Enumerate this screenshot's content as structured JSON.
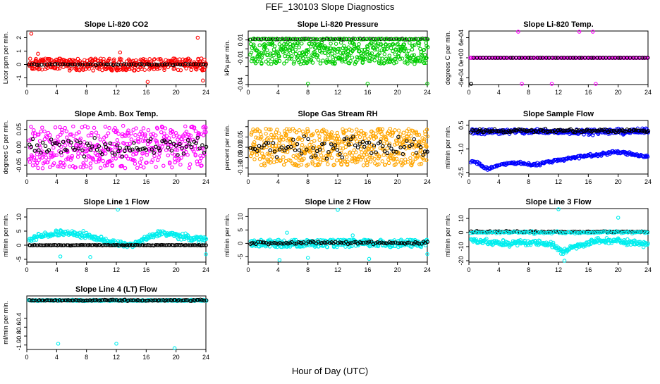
{
  "figure": {
    "title": "FEF_130103 Slope Diagnostics",
    "xlabel": "Hour of Day (UTC)"
  },
  "chart_data": [
    {
      "type": "scatter",
      "title": "Slope Li-820 CO2",
      "ylabel": "Licor ppm per min.",
      "xlim": [
        0,
        24
      ],
      "ylim": [
        -1.5,
        2.5
      ],
      "xticks": [
        0,
        4,
        8,
        12,
        16,
        20,
        24
      ],
      "yticks": [
        -1,
        0,
        1,
        2
      ],
      "ytick_labels": [
        "-1",
        "0",
        "1",
        "2"
      ],
      "color": "#ff0000",
      "series": [
        {
          "kind": "band",
          "color": "#ff0000",
          "center": 0.0,
          "spread": 0.45,
          "n": 380
        },
        {
          "kind": "line",
          "color": "#000000",
          "center": 0.0,
          "spread": 0.06,
          "n": 70
        },
        {
          "kind": "points",
          "color": "#ff0000",
          "points": [
            [
              0.6,
              2.3
            ],
            [
              22.9,
              2.0
            ],
            [
              23.4,
              0.45
            ],
            [
              23.6,
              -1.2
            ],
            [
              16.2,
              -1.3
            ],
            [
              1.5,
              0.8
            ],
            [
              12.5,
              0.9
            ]
          ]
        }
      ]
    },
    {
      "type": "scatter",
      "title": "Slope Li-820 Pressure",
      "ylabel": "kPa per min.",
      "xlim": [
        0,
        24
      ],
      "ylim": [
        -0.04,
        0.02
      ],
      "xticks": [
        0,
        4,
        8,
        12,
        16,
        20,
        24
      ],
      "yticks": [
        -0.04,
        -0.03,
        -0.02,
        -0.01,
        0.0,
        0.01
      ],
      "ytick_labels": [
        "-0.04",
        "",
        "",
        "-0.01",
        "",
        "0.01"
      ],
      "color": "#00cc00",
      "series": [
        {
          "kind": "band",
          "color": "#00cc00",
          "center": -0.005,
          "spread": 0.012,
          "n": 420
        },
        {
          "kind": "line",
          "color": "#000000",
          "center": 0.011,
          "spread": 0.001,
          "n": 80
        },
        {
          "kind": "line",
          "color": "#00cc00",
          "center": 0.011,
          "spread": 0.0008,
          "n": 60
        },
        {
          "kind": "points",
          "color": "#00cc00",
          "points": [
            [
              8,
              -0.039
            ],
            [
              16,
              -0.039
            ],
            [
              24,
              -0.039
            ]
          ]
        }
      ]
    },
    {
      "type": "scatter",
      "title": "Slope Li-820 Temp.",
      "ylabel": "degrees C per min.",
      "xlim": [
        0,
        24
      ],
      "ylim": [
        -0.0008,
        0.0008
      ],
      "xticks": [
        0,
        4,
        8,
        12,
        16,
        20,
        24
      ],
      "yticks": [
        -0.0006,
        0.0,
        0.0006
      ],
      "ytick_labels": [
        "-6e-04",
        "0e+00",
        "6e-04"
      ],
      "color": "#ff00ff",
      "series": [
        {
          "kind": "line",
          "color": "#ff00ff",
          "center": 0.0,
          "spread": 0.0,
          "n": 150
        },
        {
          "kind": "line",
          "color": "#000000",
          "center": 0.0,
          "spread": 0.0,
          "n": 60
        },
        {
          "kind": "points",
          "color": "#ff00ff",
          "points": [
            [
              6.6,
              0.00078
            ],
            [
              7.1,
              -0.00078
            ],
            [
              11.1,
              -0.00078
            ],
            [
              14.8,
              0.00078
            ],
            [
              16.6,
              0.00078
            ],
            [
              17.0,
              -0.00078
            ],
            [
              0.2,
              0.0
            ]
          ]
        },
        {
          "kind": "points",
          "color": "#000000",
          "points": [
            [
              0.3,
              -0.00078
            ]
          ]
        }
      ]
    },
    {
      "type": "scatter",
      "title": "Slope Amb. Box Temp.",
      "ylabel": "degrees C per min.",
      "xlim": [
        0,
        24
      ],
      "ylim": [
        -0.075,
        0.075
      ],
      "xticks": [
        0,
        4,
        8,
        12,
        16,
        20,
        24
      ],
      "yticks": [
        -0.05,
        0.0,
        0.05
      ],
      "ytick_labels": [
        "-0.05",
        "0.00",
        "0.05"
      ],
      "color": "#ff00ff",
      "series": [
        {
          "kind": "band",
          "color": "#ff00ff",
          "center": 0.0,
          "spread": 0.06,
          "n": 430
        },
        {
          "kind": "line",
          "color": "#000000",
          "center": 0.0,
          "spread": 0.035,
          "n": 90
        }
      ]
    },
    {
      "type": "scatter",
      "title": "Slope Gas Stream RH",
      "ylabel": "percent per min.",
      "xlim": [
        0,
        24
      ],
      "ylim": [
        -0.13,
        0.13
      ],
      "xticks": [
        0,
        4,
        8,
        12,
        16,
        20,
        24
      ],
      "yticks": [
        -0.1,
        -0.05,
        0.0,
        0.05,
        0.1
      ],
      "ytick_labels": [
        "-0.10",
        "-0.05",
        "0.00",
        "0.05",
        ""
      ],
      "color": "#ffa500",
      "series": [
        {
          "kind": "band",
          "color": "#ffa500",
          "center": 0.0,
          "spread": 0.09,
          "n": 520
        },
        {
          "kind": "line",
          "color": "#000000",
          "center": 0.0,
          "spread": 0.07,
          "n": 80
        }
      ]
    },
    {
      "type": "scatter",
      "title": "Slope Sample Flow",
      "ylabel": "ml/min per min.",
      "xlim": [
        0,
        24
      ],
      "ylim": [
        -2.6,
        0.8
      ],
      "xticks": [
        0,
        4,
        8,
        12,
        16,
        20,
        24
      ],
      "yticks": [
        -2.5,
        -1.0,
        0.5
      ],
      "ytick_labels": [
        "-2.5",
        "-1.0",
        "0.5"
      ],
      "color": "#0000ff",
      "series": [
        {
          "kind": "line",
          "color": "#0000ff",
          "center": 0.1,
          "spread": 0.25,
          "n": 300
        },
        {
          "kind": "line",
          "color": "#000000",
          "center": 0.15,
          "spread": 0.15,
          "n": 120
        },
        {
          "kind": "curve",
          "color": "#0000ff",
          "spread": 0.15,
          "n": 220,
          "knots": [
            [
              0.8,
              -1.8
            ],
            [
              2.5,
              -2.3
            ],
            [
              4.0,
              -2.0
            ],
            [
              6.0,
              -1.9
            ],
            [
              9.0,
              -2.0
            ],
            [
              12.0,
              -1.7
            ],
            [
              15.0,
              -1.5
            ],
            [
              18.0,
              -1.3
            ],
            [
              20.0,
              -1.2
            ],
            [
              24.0,
              -1.5
            ]
          ]
        }
      ]
    },
    {
      "type": "scatter",
      "title": "Slope Line 1 Flow",
      "ylabel": "ml/min per min.",
      "xlim": [
        0,
        24
      ],
      "ylim": [
        -6,
        13
      ],
      "xticks": [
        0,
        4,
        8,
        12,
        16,
        20,
        24
      ],
      "yticks": [
        -5,
        0,
        5,
        10
      ],
      "ytick_labels": [
        "-5",
        "0",
        "5",
        "10"
      ],
      "color": "#00eeee",
      "series": [
        {
          "kind": "curve",
          "color": "#00eeee",
          "spread": 1.6,
          "n": 300,
          "knots": [
            [
              0.2,
              2.0
            ],
            [
              4.0,
              4.5
            ],
            [
              8.0,
              3.5
            ],
            [
              12.0,
              0.5
            ],
            [
              14.0,
              0.0
            ],
            [
              18.0,
              4.5
            ],
            [
              22.0,
              2.5
            ],
            [
              24.0,
              2.0
            ]
          ]
        },
        {
          "kind": "line",
          "color": "#000000",
          "center": 0.0,
          "spread": 0.15,
          "n": 120
        },
        {
          "kind": "points",
          "color": "#00eeee",
          "points": [
            [
              12.2,
              12.6
            ],
            [
              4.5,
              -4.0
            ],
            [
              8.5,
              -4.2
            ],
            [
              24.0,
              -3.2
            ]
          ]
        }
      ]
    },
    {
      "type": "scatter",
      "title": "Slope Line 2 Flow",
      "ylabel": "ml/min per min.",
      "xlim": [
        0,
        24
      ],
      "ylim": [
        -7,
        13
      ],
      "xticks": [
        0,
        4,
        8,
        12,
        16,
        20,
        24
      ],
      "yticks": [
        -5,
        0,
        5,
        10
      ],
      "ytick_labels": [
        "-5",
        "0",
        "5",
        "10"
      ],
      "color": "#00eeee",
      "series": [
        {
          "kind": "band",
          "color": "#00eeee",
          "center": 0.0,
          "spread": 1.4,
          "n": 320
        },
        {
          "kind": "line",
          "color": "#000000",
          "center": 0.2,
          "spread": 0.8,
          "n": 90
        },
        {
          "kind": "points",
          "color": "#00eeee",
          "points": [
            [
              12.0,
              12.5
            ],
            [
              4.2,
              -6.2
            ],
            [
              8.0,
              -5.4
            ],
            [
              16.2,
              -5.8
            ],
            [
              24.0,
              -4.0
            ],
            [
              5.2,
              4.0
            ],
            [
              14.0,
              3.0
            ]
          ]
        }
      ]
    },
    {
      "type": "scatter",
      "title": "Slope Line 3 Flow",
      "ylabel": "ml/min per min.",
      "xlim": [
        0,
        24
      ],
      "ylim": [
        -21,
        17
      ],
      "xticks": [
        0,
        4,
        8,
        12,
        16,
        20,
        24
      ],
      "yticks": [
        -20,
        -10,
        0,
        10
      ],
      "ytick_labels": [
        "-20",
        "-10",
        "0",
        "10"
      ],
      "color": "#00eeee",
      "series": [
        {
          "kind": "curve",
          "color": "#00eeee",
          "spread": 3.0,
          "n": 300,
          "knots": [
            [
              0.2,
              -5.0
            ],
            [
              4.0,
              -8.0
            ],
            [
              8.0,
              -7.0
            ],
            [
              11.0,
              -8.0
            ],
            [
              12.5,
              -14.0
            ],
            [
              14.0,
              -10.0
            ],
            [
              17.0,
              -6.0
            ],
            [
              20.0,
              -6.0
            ],
            [
              24.0,
              -8.0
            ]
          ]
        },
        {
          "kind": "line",
          "color": "#000000",
          "center": 0.5,
          "spread": 0.8,
          "n": 120
        },
        {
          "kind": "line",
          "color": "#00eeee",
          "center": 0.0,
          "spread": 1.2,
          "n": 100
        },
        {
          "kind": "points",
          "color": "#00eeee",
          "points": [
            [
              12.0,
              16.5
            ],
            [
              20.0,
              10.5
            ],
            [
              12.8,
              -20.0
            ]
          ]
        }
      ]
    },
    {
      "type": "scatter",
      "title": "Slope Line 4 (LT) Flow",
      "ylabel": "ml/min per min.",
      "xlim": [
        0,
        24
      ],
      "ylim": [
        -1.1,
        0.1
      ],
      "xticks": [
        0,
        4,
        8,
        12,
        16,
        20,
        24
      ],
      "yticks": [
        -1.0,
        -0.8,
        -0.6,
        -0.4
      ],
      "ytick_labels": [
        "-1.0",
        "-0.8",
        "-0.6",
        "-0.4"
      ],
      "color": "#00eeee",
      "series": [
        {
          "kind": "line",
          "color": "#00eeee",
          "center": 0.0,
          "spread": 0.02,
          "n": 260
        },
        {
          "kind": "line",
          "color": "#000000",
          "center": 0.0,
          "spread": 0.02,
          "n": 100
        },
        {
          "kind": "points",
          "color": "#00eeee",
          "points": [
            [
              4.2,
              -0.97
            ],
            [
              12.0,
              -0.97
            ],
            [
              19.8,
              -1.07
            ]
          ]
        }
      ]
    }
  ]
}
